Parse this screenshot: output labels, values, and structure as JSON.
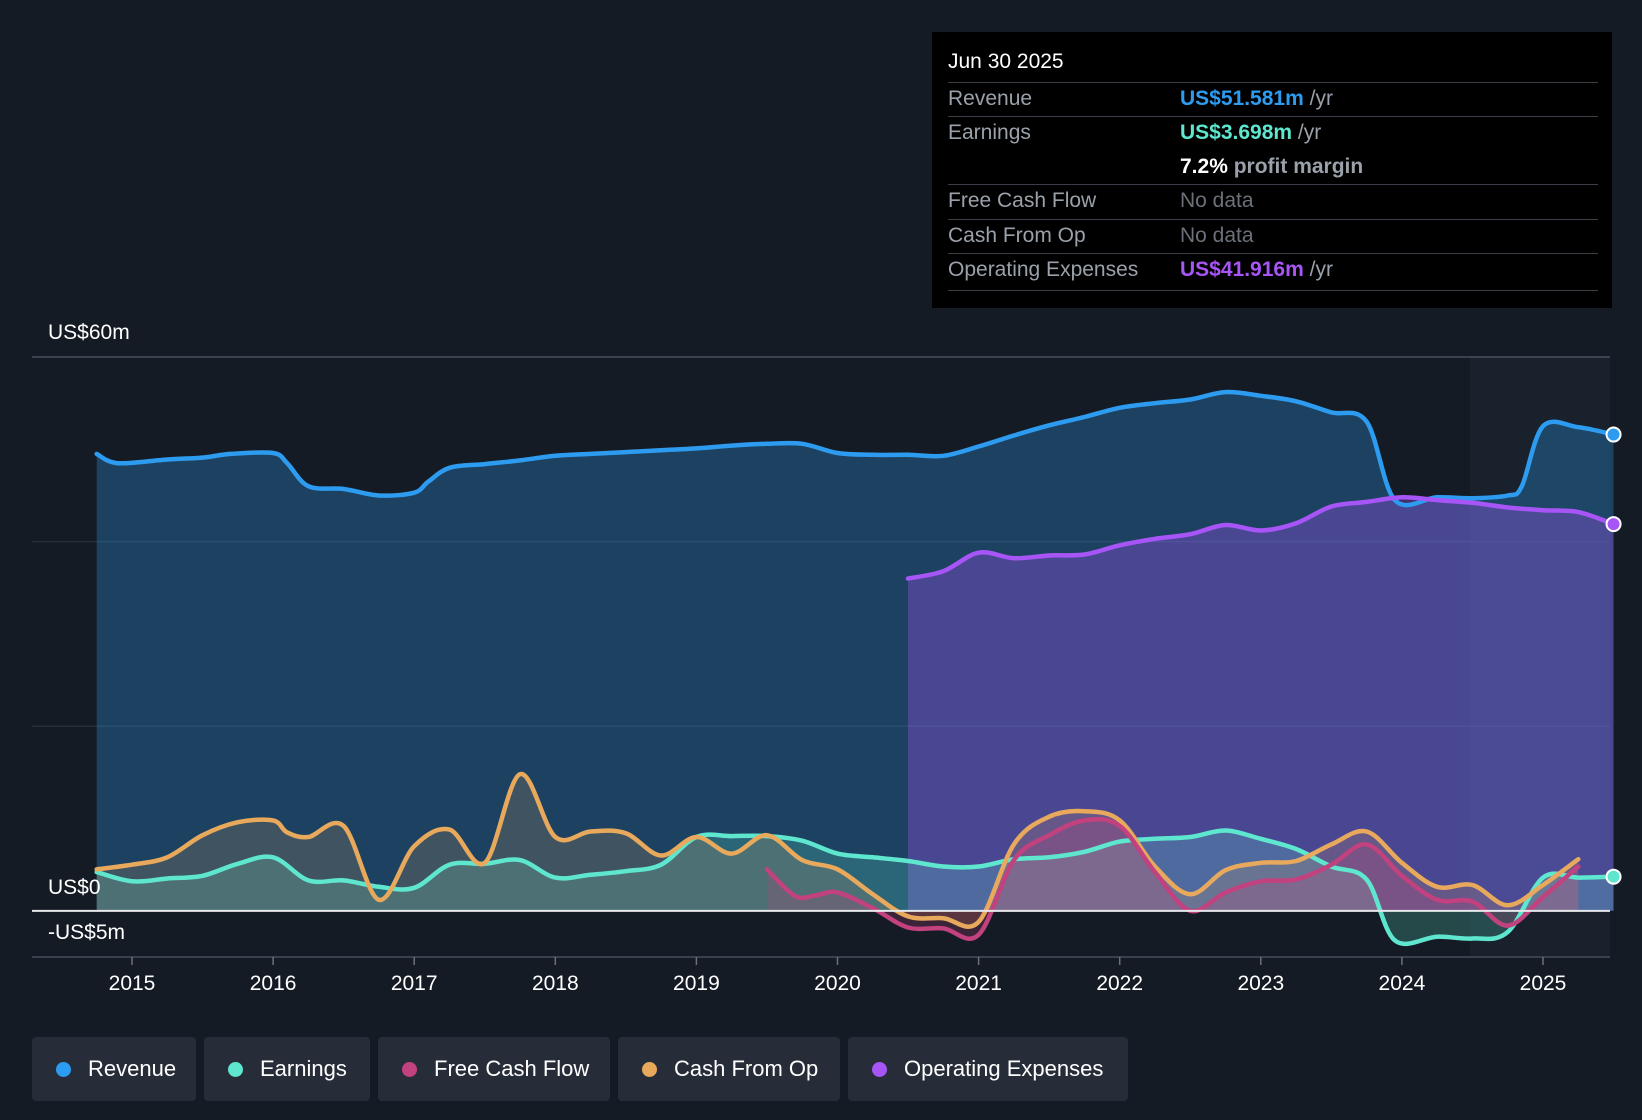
{
  "tooltip": {
    "date": "Jun 30 2025",
    "rows": [
      {
        "label": "Revenue",
        "value": "US$51.581m",
        "unit": "/yr",
        "color": "#2d9cf0"
      },
      {
        "label": "Earnings",
        "value": "US$3.698m",
        "unit": "/yr",
        "color": "#5ee6cf"
      },
      {
        "label": "",
        "value": "7.2%",
        "unit": "profit margin",
        "color": "#ffffff"
      },
      {
        "label": "Free Cash Flow",
        "value": "No data",
        "unit": "",
        "color": "#6b7079"
      },
      {
        "label": "Cash From Op",
        "value": "No data",
        "unit": "",
        "color": "#6b7079"
      },
      {
        "label": "Operating Expenses",
        "value": "US$41.916m",
        "unit": "/yr",
        "color": "#a855f7"
      }
    ]
  },
  "legend": [
    {
      "label": "Revenue",
      "color": "#2d9cf0"
    },
    {
      "label": "Earnings",
      "color": "#5ee6cf"
    },
    {
      "label": "Free Cash Flow",
      "color": "#c2417f"
    },
    {
      "label": "Cash From Op",
      "color": "#e8a95c"
    },
    {
      "label": "Operating Expenses",
      "color": "#a855f7"
    }
  ],
  "chart_data": {
    "type": "area",
    "y_labels": {
      "top": "US$60m",
      "zero": "US$0",
      "bottom": "-US$5m"
    },
    "ylim": [
      -5,
      60
    ],
    "xlim": [
      2014.75,
      2025.5
    ],
    "x_ticks": [
      "2015",
      "2016",
      "2017",
      "2018",
      "2019",
      "2020",
      "2021",
      "2022",
      "2023",
      "2024",
      "2025"
    ],
    "grid": true,
    "series": [
      {
        "name": "Revenue",
        "color": "#2d9cf0",
        "x": [
          2014.75,
          2014.9,
          2015.25,
          2015.5,
          2015.7,
          2016.0,
          2016.1,
          2016.25,
          2016.5,
          2016.75,
          2017.0,
          2017.1,
          2017.25,
          2017.5,
          2017.75,
          2018.0,
          2018.25,
          2018.5,
          2018.75,
          2019.0,
          2019.25,
          2019.5,
          2019.75,
          2020.0,
          2020.25,
          2020.5,
          2020.75,
          2021.0,
          2021.25,
          2021.5,
          2021.75,
          2022.0,
          2022.25,
          2022.5,
          2022.75,
          2023.0,
          2023.25,
          2023.5,
          2023.75,
          2023.95,
          2024.25,
          2024.5,
          2024.75,
          2024.85,
          2025.0,
          2025.25,
          2025.5
        ],
        "values": [
          49.5,
          48.5,
          48.9,
          49.1,
          49.5,
          49.6,
          48.5,
          46.0,
          45.7,
          45.0,
          45.3,
          46.5,
          48.0,
          48.4,
          48.8,
          49.3,
          49.5,
          49.7,
          49.9,
          50.1,
          50.4,
          50.6,
          50.6,
          49.6,
          49.4,
          49.4,
          49.3,
          50.3,
          51.5,
          52.6,
          53.5,
          54.5,
          55.0,
          55.4,
          56.2,
          55.8,
          55.2,
          54.0,
          53.0,
          44.5,
          44.8,
          44.7,
          45.0,
          46.0,
          52.5,
          52.4,
          51.6
        ]
      },
      {
        "name": "Earnings",
        "color": "#5ee6cf",
        "x": [
          2014.75,
          2015.0,
          2015.25,
          2015.5,
          2015.75,
          2016.0,
          2016.25,
          2016.5,
          2016.75,
          2017.0,
          2017.25,
          2017.5,
          2017.75,
          2018.0,
          2018.25,
          2018.5,
          2018.75,
          2019.0,
          2019.25,
          2019.5,
          2019.75,
          2020.0,
          2020.25,
          2020.5,
          2020.75,
          2021.0,
          2021.25,
          2021.5,
          2021.75,
          2022.0,
          2022.25,
          2022.5,
          2022.75,
          2023.0,
          2023.25,
          2023.5,
          2023.75,
          2023.95,
          2024.25,
          2024.5,
          2024.75,
          2025.0,
          2025.25,
          2025.5
        ],
        "values": [
          4.2,
          3.2,
          3.5,
          3.8,
          5.1,
          5.8,
          3.3,
          3.3,
          2.6,
          2.5,
          5.0,
          5.1,
          5.5,
          3.6,
          3.9,
          4.3,
          5.0,
          8.0,
          8.1,
          8.1,
          7.6,
          6.2,
          5.8,
          5.4,
          4.8,
          4.8,
          5.6,
          5.8,
          6.4,
          7.5,
          7.8,
          8.0,
          8.7,
          7.8,
          6.7,
          4.8,
          3.4,
          -3.2,
          -2.8,
          -3.0,
          -2.3,
          3.6,
          3.6,
          3.7
        ]
      },
      {
        "name": "Free Cash Flow",
        "color": "#c2417f",
        "x": [
          2019.5,
          2019.7,
          2019.85,
          2020.0,
          2020.25,
          2020.5,
          2020.75,
          2021.0,
          2021.25,
          2021.5,
          2021.75,
          2022.0,
          2022.25,
          2022.5,
          2022.75,
          2023.0,
          2023.25,
          2023.5,
          2023.75,
          2024.0,
          2024.25,
          2024.5,
          2024.75,
          2025.0,
          2025.25
        ],
        "values": [
          4.5,
          1.6,
          1.7,
          2.0,
          0.3,
          -1.8,
          -1.9,
          -2.6,
          5.5,
          8.2,
          9.8,
          9.2,
          4.2,
          0.0,
          2.0,
          3.2,
          3.4,
          5.0,
          7.2,
          3.8,
          1.2,
          1.0,
          -1.6,
          1.5,
          4.8
        ]
      },
      {
        "name": "Cash From Op",
        "color": "#e8a95c",
        "x": [
          2014.75,
          2015.0,
          2015.25,
          2015.5,
          2015.75,
          2016.0,
          2016.1,
          2016.25,
          2016.5,
          2016.75,
          2017.0,
          2017.25,
          2017.5,
          2017.75,
          2018.0,
          2018.25,
          2018.5,
          2018.75,
          2019.0,
          2019.25,
          2019.5,
          2019.75,
          2020.0,
          2020.25,
          2020.5,
          2020.75,
          2021.0,
          2021.25,
          2021.5,
          2021.75,
          2022.0,
          2022.25,
          2022.5,
          2022.75,
          2023.0,
          2023.25,
          2023.5,
          2023.75,
          2024.0,
          2024.25,
          2024.5,
          2024.75,
          2025.0,
          2025.25
        ],
        "values": [
          4.5,
          5.0,
          5.8,
          8.2,
          9.6,
          9.8,
          8.5,
          8.0,
          9.2,
          1.2,
          7.0,
          8.8,
          5.2,
          14.8,
          8.0,
          8.6,
          8.4,
          6.0,
          8.0,
          6.2,
          8.2,
          5.5,
          4.5,
          1.8,
          -0.6,
          -0.8,
          -1.2,
          7.2,
          10.2,
          10.8,
          9.8,
          4.8,
          1.8,
          4.4,
          5.2,
          5.4,
          7.2,
          8.6,
          5.2,
          2.6,
          2.8,
          0.6,
          2.8,
          5.6
        ]
      },
      {
        "name": "Operating Expenses",
        "color": "#a855f7",
        "x": [
          2020.5,
          2020.75,
          2021.0,
          2021.25,
          2021.5,
          2021.75,
          2022.0,
          2022.25,
          2022.5,
          2022.75,
          2023.0,
          2023.25,
          2023.5,
          2023.75,
          2024.0,
          2024.25,
          2024.5,
          2024.75,
          2025.0,
          2025.25,
          2025.5
        ],
        "values": [
          36.0,
          36.8,
          38.8,
          38.2,
          38.5,
          38.6,
          39.6,
          40.3,
          40.8,
          41.8,
          41.2,
          42.0,
          43.8,
          44.3,
          44.8,
          44.5,
          44.2,
          43.7,
          43.4,
          43.2,
          41.9
        ]
      }
    ]
  }
}
